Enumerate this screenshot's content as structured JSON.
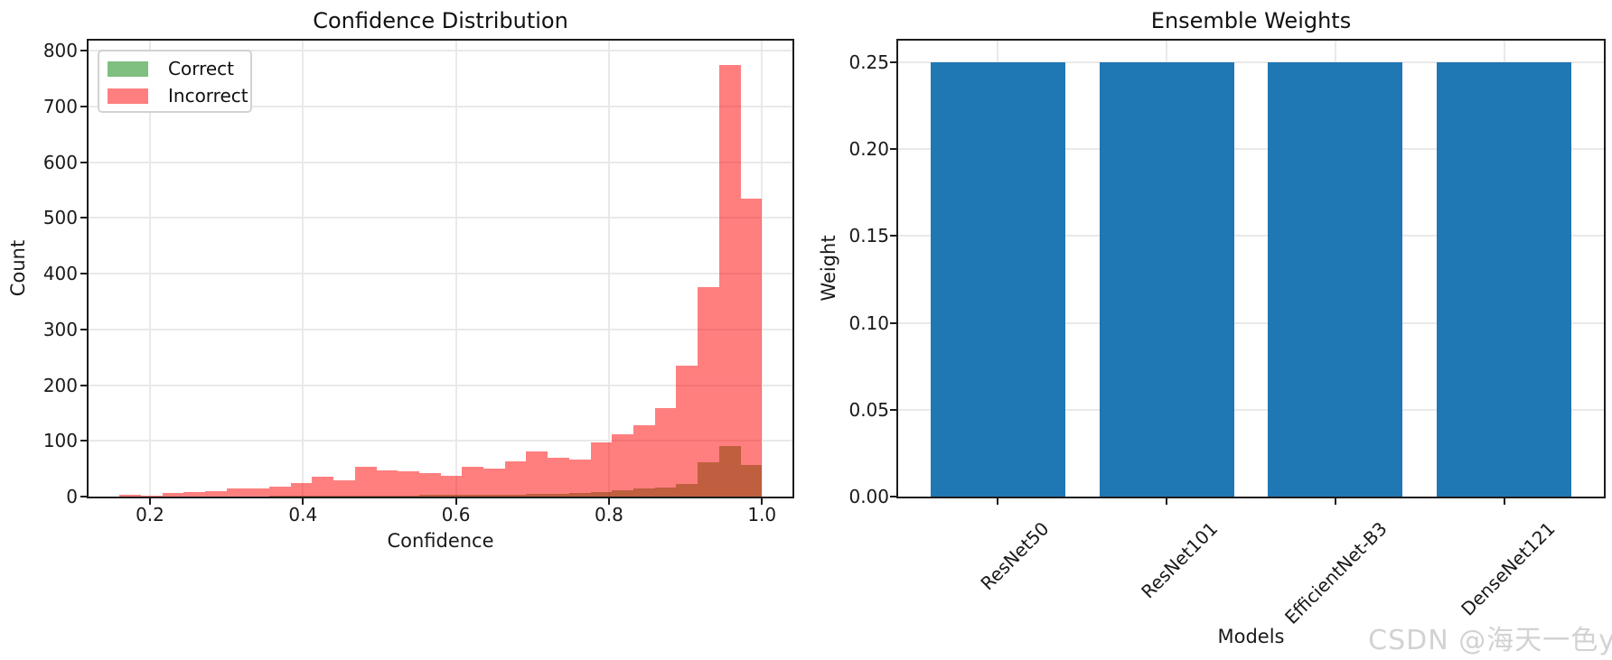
{
  "figure": {
    "watermark": "CSDN @海天一色y"
  },
  "chart_data": [
    {
      "type": "histogram",
      "title": "Confidence Distribution",
      "xlabel": "Confidence",
      "ylabel": "Count",
      "grid": true,
      "legend_position": "upper left",
      "bins": {
        "start": 0.16,
        "width": 0.028,
        "count": 30
      },
      "series": [
        {
          "name": "Correct",
          "fill": "rgba(0,128,0,0.5)",
          "counts": [
            0,
            0,
            0,
            0,
            0,
            0,
            0,
            1,
            1,
            1,
            1,
            2,
            2,
            2,
            3,
            3,
            3,
            4,
            4,
            5,
            5,
            6,
            8,
            11,
            14,
            16,
            22,
            62,
            90,
            56
          ]
        },
        {
          "name": "Incorrect",
          "fill": "rgba(255,0,0,0.5)",
          "counts": [
            3,
            2,
            6,
            8,
            10,
            15,
            14,
            18,
            25,
            36,
            29,
            54,
            47,
            46,
            42,
            38,
            54,
            51,
            63,
            81,
            70,
            67,
            98,
            111,
            128,
            158,
            235,
            376,
            775,
            535
          ]
        }
      ],
      "xlim": [
        0.1197,
        1.0399
      ],
      "ylim": [
        0,
        818
      ],
      "x_ticks": [
        0.2,
        0.4,
        0.6,
        0.8,
        1.0
      ],
      "x_tick_labels": [
        "0.2",
        "0.4",
        "0.6",
        "0.8",
        "1.0"
      ],
      "y_ticks": [
        0,
        100,
        200,
        300,
        400,
        500,
        600,
        700,
        800
      ],
      "y_tick_labels": [
        "0",
        "100",
        "200",
        "300",
        "400",
        "500",
        "600",
        "700",
        "800"
      ]
    },
    {
      "type": "bar",
      "title": "Ensemble Weights",
      "xlabel": "Models",
      "ylabel": "Weight",
      "grid": true,
      "categories": [
        "ResNet50",
        "ResNet101",
        "EfficientNet-B3",
        "DenseNet121"
      ],
      "values": [
        0.25,
        0.25,
        0.25,
        0.25
      ],
      "bar_color": "#1f77b4",
      "ylim": [
        0,
        0.2625
      ],
      "y_ticks": [
        0,
        0.05,
        0.1,
        0.15,
        0.2,
        0.25
      ],
      "y_tick_labels": [
        "0.00",
        "0.05",
        "0.10",
        "0.15",
        "0.20",
        "0.25"
      ],
      "x_tick_rotation": 45
    }
  ]
}
